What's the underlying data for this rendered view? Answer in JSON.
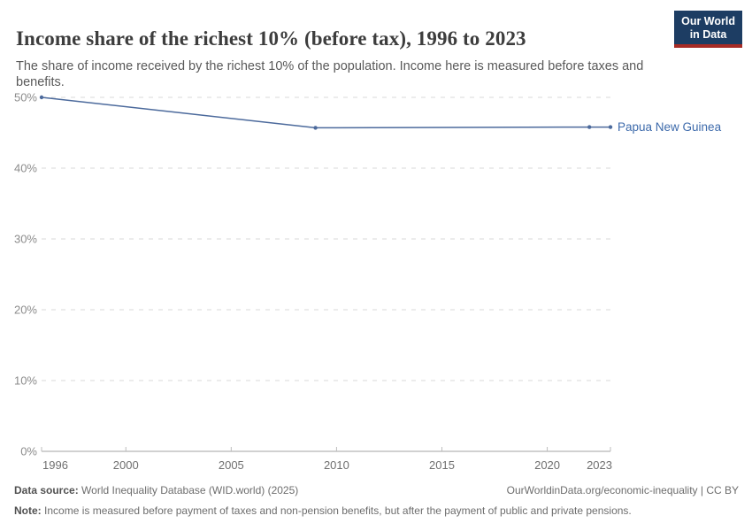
{
  "header": {
    "title": "Income share of the richest 10% (before tax), 1996 to 2023",
    "subtitle": "The share of income received by the richest 10% of the population. Income here is measured before taxes and benefits.",
    "logo": {
      "line1": "Our World",
      "line2": "in Data",
      "bg_color": "#1d3d63",
      "stripe_color": "#a72b25",
      "text_color": "#ffffff"
    }
  },
  "chart_data": {
    "type": "line",
    "title": "Income share of the richest 10% (before tax), 1996 to 2023",
    "series": [
      {
        "name": "Papua New Guinea",
        "color": "#4c6a9c",
        "label_color": "#3d6aab",
        "points": [
          {
            "year": 1996,
            "value": 50.0
          },
          {
            "year": 2009,
            "value": 45.7
          },
          {
            "year": 2022,
            "value": 45.8
          },
          {
            "year": 2023,
            "value": 45.8
          }
        ]
      }
    ],
    "x_range": [
      1996,
      2023
    ],
    "y_range": [
      0,
      50
    ],
    "x_ticks": [
      1996,
      2000,
      2005,
      2010,
      2015,
      2020,
      2023
    ],
    "y_ticks": [
      0,
      10,
      20,
      30,
      40,
      50
    ],
    "y_tick_suffix": "%",
    "grid": "horizontal-dashed",
    "legend_position": "end-of-line-label",
    "colors": {
      "gridline": "#d9d9d9",
      "axis": "#a3a3a3",
      "tick": "#bdbdbd",
      "y_label": "#8c8c8c",
      "x_label": "#6f6f6f"
    }
  },
  "footer": {
    "data_source_label": "Data source:",
    "data_source_text": "World Inequality Database (WID.world) (2025)",
    "attribution": "OurWorldinData.org/economic-inequality | CC BY",
    "note_label": "Note:",
    "note_text": "Income is measured before payment of taxes and non-pension benefits, but after the payment of public and private pensions."
  }
}
